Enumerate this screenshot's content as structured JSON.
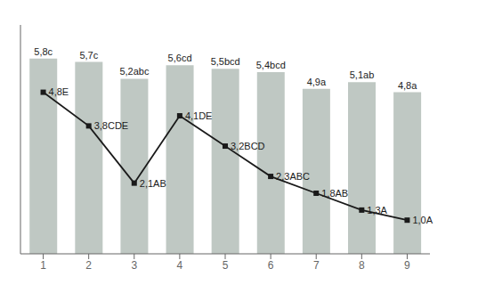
{
  "chart_data": {
    "type": "bar",
    "categories": [
      1,
      2,
      3,
      4,
      5,
      6,
      7,
      8,
      9
    ],
    "ylim": [
      0,
      6.8
    ],
    "tick_labels": "x",
    "data_labels": true,
    "series": [
      {
        "type": "bar",
        "color": "#bfc8c3",
        "values": [
          5.8,
          5.7,
          5.2,
          5.6,
          5.5,
          5.4,
          4.9,
          5.1,
          4.8
        ],
        "value_labels": [
          "5,8c",
          "5,7c",
          "5,2abc",
          "5,6cd",
          "5,5bcd",
          "5,4bcd",
          "4,9a",
          "5,1ab",
          "4,8a"
        ]
      },
      {
        "type": "line",
        "color": "#1a1a1a",
        "marker": "square",
        "values": [
          4.8,
          3.8,
          2.1,
          4.1,
          3.2,
          2.3,
          1.8,
          1.3,
          1.0
        ],
        "value_labels": [
          "4,8E",
          "3,8CDE",
          "2,1AB",
          "4,1DE",
          "3,2BCD",
          "2,3ABC",
          "1,8AB",
          "1,3A",
          "1,0A"
        ]
      }
    ]
  }
}
